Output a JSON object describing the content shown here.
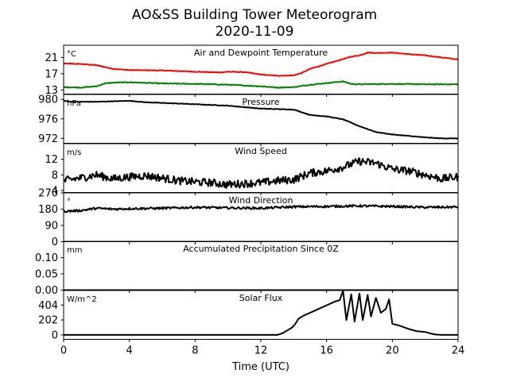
{
  "figure": {
    "title_line1": "AO&SS Building Tower Meteorogram",
    "title_line2": "2020-11-09",
    "xlabel": "Time (UTC)"
  },
  "chart_data": {
    "type": "line",
    "xlim": [
      0,
      24
    ],
    "xticks": [
      0,
      4,
      8,
      12,
      16,
      20,
      24
    ],
    "xlabel": "Time (UTC)",
    "panels": [
      {
        "key": "temperature",
        "title": "Air and Dewpoint Temperature",
        "unit": "°C",
        "ylim": [
          12,
          24
        ],
        "yticks": [
          13,
          17,
          21
        ],
        "series": [
          {
            "key": "air-temperature",
            "color": "#ff0000",
            "noise": 0.08,
            "points": [
              [
                0,
                19.5
              ],
              [
                1,
                19.4
              ],
              [
                2,
                19.1
              ],
              [
                3,
                18.2
              ],
              [
                4,
                17.9
              ],
              [
                6,
                17.8
              ],
              [
                8,
                17.5
              ],
              [
                9.5,
                17.3
              ],
              [
                10,
                17.5
              ],
              [
                11,
                17.4
              ],
              [
                12,
                16.8
              ],
              [
                13,
                16.5
              ],
              [
                14,
                16.6
              ],
              [
                14.5,
                17.2
              ],
              [
                15,
                18.2
              ],
              [
                16,
                19.4
              ],
              [
                17,
                20.6
              ],
              [
                17.5,
                21.2
              ],
              [
                18,
                21.5
              ],
              [
                18.5,
                22.2
              ],
              [
                19,
                22.1
              ],
              [
                20,
                22.2
              ],
              [
                21,
                21.8
              ],
              [
                22,
                21.5
              ],
              [
                23,
                21.0
              ],
              [
                24,
                20.5
              ]
            ]
          },
          {
            "key": "dewpoint-temperature",
            "color": "#008000",
            "noise": 0.1,
            "points": [
              [
                0,
                13.7
              ],
              [
                1,
                13.6
              ],
              [
                2,
                13.9
              ],
              [
                2.5,
                14.6
              ],
              [
                3,
                14.8
              ],
              [
                4,
                14.9
              ],
              [
                6,
                14.6
              ],
              [
                8,
                14.5
              ],
              [
                10,
                14.3
              ],
              [
                12,
                13.9
              ],
              [
                13,
                13.6
              ],
              [
                14,
                13.7
              ],
              [
                15,
                14.3
              ],
              [
                16,
                14.7
              ],
              [
                16.5,
                14.9
              ],
              [
                17,
                15.1
              ],
              [
                17.5,
                14.5
              ],
              [
                18,
                14.4
              ],
              [
                20,
                14.5
              ],
              [
                22,
                14.4
              ],
              [
                24,
                14.4
              ]
            ]
          }
        ]
      },
      {
        "key": "pressure",
        "title": "Pressure",
        "unit": "hPa",
        "ylim": [
          971,
          981
        ],
        "yticks": [
          972,
          976,
          980
        ],
        "series": [
          {
            "key": "pressure",
            "color": "#000000",
            "noise": 0.05,
            "points": [
              [
                0,
                979.7
              ],
              [
                0.5,
                979.5
              ],
              [
                2,
                979.5
              ],
              [
                4,
                979.7
              ],
              [
                5,
                979.4
              ],
              [
                8,
                979.0
              ],
              [
                10,
                978.7
              ],
              [
                12,
                978.1
              ],
              [
                14,
                977.9
              ],
              [
                15,
                976.8
              ],
              [
                16,
                976.5
              ],
              [
                17,
                975.9
              ],
              [
                18,
                974.5
              ],
              [
                19,
                973.3
              ],
              [
                20,
                972.8
              ],
              [
                21,
                972.5
              ],
              [
                22,
                972.2
              ],
              [
                23,
                972.0
              ],
              [
                24,
                972.0
              ]
            ]
          }
        ]
      },
      {
        "key": "wind-speed",
        "title": "Wind Speed",
        "unit": "m/s",
        "ylim": [
          3.5,
          16
        ],
        "yticks": [
          4,
          8,
          12
        ],
        "series": [
          {
            "key": "wind-speed",
            "color": "#000000",
            "noise": 1.0,
            "points": [
              [
                0,
                6.5
              ],
              [
                1,
                7.2
              ],
              [
                2,
                8.0
              ],
              [
                3,
                7.0
              ],
              [
                4,
                7.5
              ],
              [
                5,
                7.8
              ],
              [
                6,
                7.2
              ],
              [
                7,
                6.5
              ],
              [
                8,
                6.2
              ],
              [
                9,
                6.0
              ],
              [
                10,
                5.5
              ],
              [
                11,
                5.8
              ],
              [
                12,
                6.0
              ],
              [
                13,
                6.5
              ],
              [
                14,
                6.8
              ],
              [
                15,
                8.5
              ],
              [
                16,
                9.0
              ],
              [
                17,
                10.0
              ],
              [
                18,
                11.5
              ],
              [
                19,
                11.0
              ],
              [
                20,
                9.5
              ],
              [
                21,
                9.0
              ],
              [
                22,
                8.0
              ],
              [
                23,
                7.0
              ],
              [
                24,
                7.5
              ]
            ]
          }
        ]
      },
      {
        "key": "wind-direction",
        "title": "Wind Direction",
        "unit": "°",
        "ylim": [
          0,
          270
        ],
        "yticks": [
          0,
          90,
          180,
          270
        ],
        "series": [
          {
            "key": "wind-direction",
            "color": "#000000",
            "noise": 6,
            "points": [
              [
                0,
                168
              ],
              [
                1,
                172
              ],
              [
                2,
                185
              ],
              [
                3,
                180
              ],
              [
                4,
                183
              ],
              [
                6,
                185
              ],
              [
                8,
                190
              ],
              [
                10,
                187
              ],
              [
                12,
                185
              ],
              [
                14,
                193
              ],
              [
                16,
                195
              ],
              [
                18,
                198
              ],
              [
                20,
                195
              ],
              [
                22,
                190
              ],
              [
                24,
                192
              ]
            ]
          }
        ]
      },
      {
        "key": "precipitation",
        "title": "Accumulated Precipitation Since 0Z",
        "unit": "mm",
        "ylim": [
          0,
          0.15
        ],
        "yticks": [
          0.0,
          0.05,
          0.1
        ],
        "tick_labels": [
          "0.00",
          "0.05",
          "0.10"
        ],
        "series": [
          {
            "key": "precipitation",
            "color": "#000000",
            "noise": 0,
            "points": [
              [
                0,
                0
              ],
              [
                24,
                0
              ]
            ]
          }
        ]
      },
      {
        "key": "solar-flux",
        "title": "Solar Flux",
        "unit": "W/m^2",
        "ylim": [
          -60,
          600
        ],
        "yticks": [
          0,
          202,
          404
        ],
        "series": [
          {
            "key": "solar-flux",
            "color": "#000000",
            "noise": 0,
            "points": [
              [
                0,
                0
              ],
              [
                13,
                0
              ],
              [
                13.3,
                20
              ],
              [
                13.6,
                60
              ],
              [
                13.9,
                100
              ],
              [
                14.1,
                150
              ],
              [
                14.3,
                220
              ],
              [
                14.6,
                260
              ],
              [
                15,
                300
              ],
              [
                15.5,
                350
              ],
              [
                16,
                400
              ],
              [
                16.5,
                450
              ],
              [
                16.8,
                470
              ],
              [
                17,
                600
              ],
              [
                17.2,
                200
              ],
              [
                17.5,
                550
              ],
              [
                17.7,
                180
              ],
              [
                18,
                560
              ],
              [
                18.2,
                200
              ],
              [
                18.5,
                540
              ],
              [
                18.7,
                250
              ],
              [
                19,
                500
              ],
              [
                19.3,
                300
              ],
              [
                19.6,
                350
              ],
              [
                19.8,
                480
              ],
              [
                20,
                150
              ],
              [
                20.5,
                120
              ],
              [
                21,
                80
              ],
              [
                21.5,
                50
              ],
              [
                22,
                40
              ],
              [
                22.3,
                20
              ],
              [
                22.6,
                5
              ],
              [
                23,
                0
              ],
              [
                24,
                0
              ]
            ]
          }
        ]
      }
    ]
  }
}
